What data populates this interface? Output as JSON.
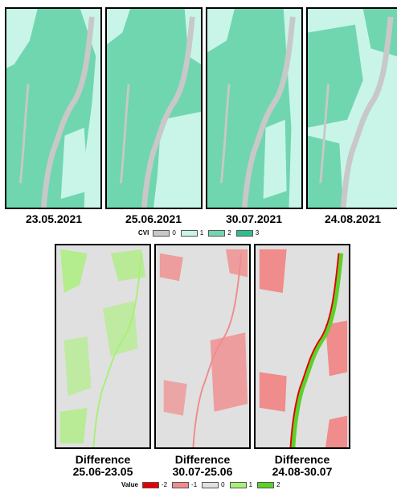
{
  "top_panels": {
    "dates": [
      "23.05.2021",
      "25.06.2021",
      "30.07.2021",
      "24.08.2021"
    ]
  },
  "cvi_legend": {
    "title": "CVI",
    "items": [
      {
        "label": "0",
        "color": "#c8c8c8"
      },
      {
        "label": "1",
        "color": "#c8f5e8"
      },
      {
        "label": "2",
        "color": "#6fd6b0"
      },
      {
        "label": "3",
        "color": "#2ebf8f"
      }
    ]
  },
  "bottom_panels": {
    "labels": [
      {
        "line1": "Difference",
        "line2": "25.06-23.05"
      },
      {
        "line1": "Difference",
        "line2": "30.07-25.06"
      },
      {
        "line1": "Difference",
        "line2": "24.08-30.07"
      }
    ]
  },
  "value_legend": {
    "title": "Value",
    "items": [
      {
        "label": "-2",
        "color": "#e60000"
      },
      {
        "label": "-1",
        "color": "#f08c8c"
      },
      {
        "label": "0",
        "color": "#e0e0e0"
      },
      {
        "label": "1",
        "color": "#a8f078"
      },
      {
        "label": "2",
        "color": "#5ad22a"
      }
    ]
  }
}
